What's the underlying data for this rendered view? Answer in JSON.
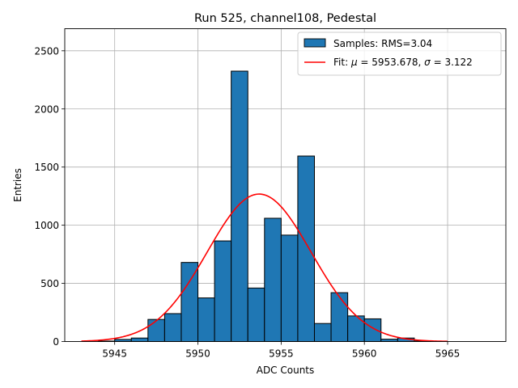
{
  "chart_data": {
    "type": "bar",
    "title": "Run 525, channel108, Pedestal",
    "xlabel": "ADC Counts",
    "ylabel": "Entries",
    "xlim": [
      5942.0,
      5968.5
    ],
    "ylim": [
      0,
      2690
    ],
    "xticks": [
      5945,
      5950,
      5955,
      5960,
      5965
    ],
    "yticks": [
      0,
      500,
      1000,
      1500,
      2000,
      2500
    ],
    "grid": true,
    "legend_position": "top-right",
    "histogram": {
      "name": "Samples: RMS=3.04",
      "color": "#1f77b4",
      "edgecolor": "#000000",
      "bin_width": 1,
      "bins": [
        {
          "x0": 5944,
          "value": 4
        },
        {
          "x0": 5945,
          "value": 18
        },
        {
          "x0": 5946,
          "value": 30
        },
        {
          "x0": 5947,
          "value": 190
        },
        {
          "x0": 5948,
          "value": 240
        },
        {
          "x0": 5949,
          "value": 680
        },
        {
          "x0": 5950,
          "value": 375
        },
        {
          "x0": 5951,
          "value": 865
        },
        {
          "x0": 5952,
          "value": 2325
        },
        {
          "x0": 5953,
          "value": 460
        },
        {
          "x0": 5954,
          "value": 1060
        },
        {
          "x0": 5955,
          "value": 915
        },
        {
          "x0": 5956,
          "value": 1595
        },
        {
          "x0": 5957,
          "value": 155
        },
        {
          "x0": 5958,
          "value": 420
        },
        {
          "x0": 5959,
          "value": 220
        },
        {
          "x0": 5960,
          "value": 195
        },
        {
          "x0": 5961,
          "value": 20
        },
        {
          "x0": 5962,
          "value": 30
        },
        {
          "x0": 5963,
          "value": 5
        }
      ]
    },
    "fit": {
      "name_prefix": "Fit: ",
      "mu_symbol": "μ",
      "mu_text": " = 5953.678, ",
      "sigma_symbol": "σ",
      "sigma_text": " = 3.122",
      "color": "#ff0000",
      "mu": 5953.678,
      "sigma": 3.122,
      "amplitude": 1268,
      "x_range": [
        5943,
        5965
      ]
    }
  }
}
